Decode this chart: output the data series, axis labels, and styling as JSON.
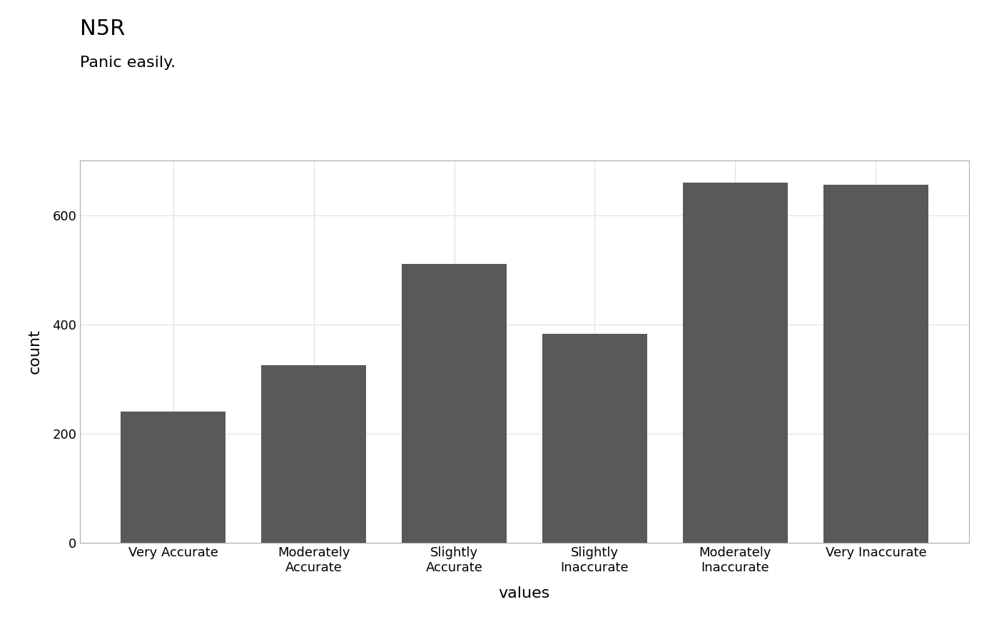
{
  "title": "N5R",
  "subtitle": "Panic easily.",
  "categories": [
    "Very Accurate",
    "Moderately\nAccurate",
    "Slightly\nAccurate",
    "Slightly\nInaccurate",
    "Moderately\nInaccurate",
    "Very Inaccurate"
  ],
  "values": [
    240,
    325,
    510,
    383,
    660,
    655
  ],
  "bar_color": "#595959",
  "xlabel": "values",
  "ylabel": "count",
  "ylim": [
    0,
    700
  ],
  "yticks": [
    0,
    200,
    400,
    600
  ],
  "background_color": "#ffffff",
  "plot_bg_color": "#ffffff",
  "grid_color": "#e0e0e0",
  "title_fontsize": 22,
  "subtitle_fontsize": 16,
  "axis_label_fontsize": 16,
  "tick_fontsize": 13,
  "bar_width": 0.75
}
